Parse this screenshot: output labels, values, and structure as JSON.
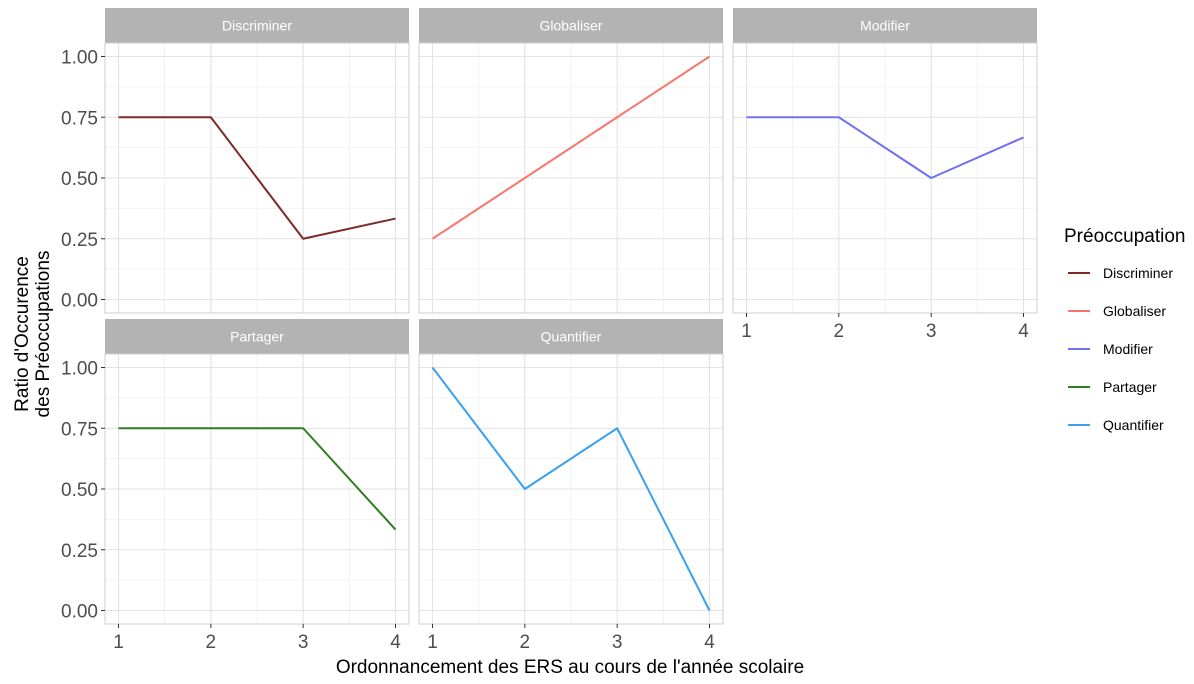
{
  "chart_data": {
    "type": "line",
    "xlabel": "Ordonnancement des ERS au cours de l'année scolaire",
    "ylabel_lines": [
      "Ratio d'Occurence",
      "des Préoccupations"
    ],
    "x_ticks": [
      1,
      2,
      3,
      4
    ],
    "y_ticks": [
      "0.00",
      "0.25",
      "0.50",
      "0.75",
      "1.00"
    ],
    "xlim": [
      1,
      4
    ],
    "ylim": [
      0,
      1
    ],
    "grid": true,
    "legend": {
      "title": "Préoccupation",
      "position": "right"
    },
    "facets": [
      {
        "name": "Discriminer",
        "color": "#7f2a2a",
        "x": [
          1,
          2,
          3,
          4
        ],
        "y": [
          0.75,
          0.75,
          0.25,
          0.333
        ]
      },
      {
        "name": "Globaliser",
        "color": "#f8766d",
        "x": [
          1,
          2,
          3,
          4
        ],
        "y": [
          0.25,
          0.5,
          0.75,
          1.0
        ]
      },
      {
        "name": "Modifier",
        "color": "#7070f0",
        "x": [
          1,
          2,
          3,
          4
        ],
        "y": [
          0.75,
          0.75,
          0.5,
          0.667
        ]
      },
      {
        "name": "Partager",
        "color": "#2e7d22",
        "x": [
          1,
          2,
          3,
          4
        ],
        "y": [
          0.75,
          0.75,
          0.75,
          0.333
        ]
      },
      {
        "name": "Quantifier",
        "color": "#3aa0f0",
        "x": [
          1,
          2,
          3,
          4
        ],
        "y": [
          1.0,
          0.5,
          0.75,
          0.0
        ]
      }
    ]
  }
}
